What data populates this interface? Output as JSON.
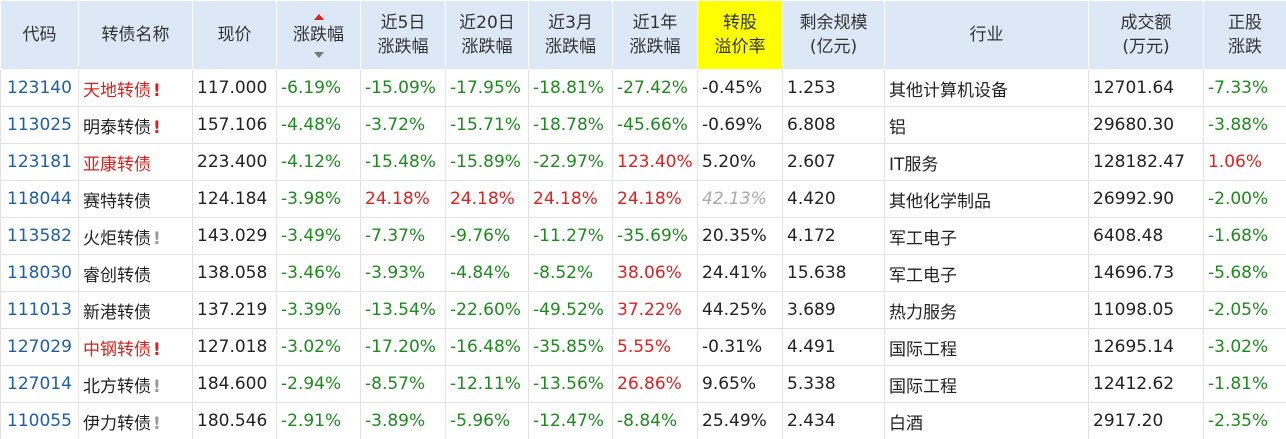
{
  "table": {
    "header": [
      [
        "代码"
      ],
      [
        "转债名称"
      ],
      [
        "现价"
      ],
      [
        "涨跌幅"
      ],
      [
        "近5日",
        "涨跌幅"
      ],
      [
        "近20日",
        "涨跌幅"
      ],
      [
        "近3月",
        "涨跌幅"
      ],
      [
        "近1年",
        "涨跌幅"
      ],
      [
        "转股",
        "溢价率"
      ],
      [
        "剩余规模",
        "(亿元)"
      ],
      [
        "行业"
      ],
      [
        "成交额",
        "(万元)"
      ],
      [
        "正股",
        "涨跌"
      ]
    ],
    "rows": [
      {
        "code": "123140",
        "name": "天地转债",
        "name_color": "#d8201c",
        "flag": "!",
        "flag_color": "#d8201c",
        "price": "117.000",
        "chg": "-6.19%",
        "chg5d": "-15.09%",
        "chg20d": "-17.95%",
        "chg3m": "-18.81%",
        "chg1y": "-27.42%",
        "premium": "-0.45%",
        "scale": "1.253",
        "industry": "其他计算机设备",
        "turnover": "12701.64",
        "stock_chg": "-7.33%"
      },
      {
        "code": "113025",
        "name": "明泰转债",
        "flag": "!",
        "flag_color": "#d8201c",
        "price": "157.106",
        "chg": "-4.48%",
        "chg5d": "-3.72%",
        "chg20d": "-15.71%",
        "chg3m": "-18.78%",
        "chg1y": "-45.66%",
        "premium": "-0.69%",
        "scale": "6.808",
        "industry": "铝",
        "turnover": "29680.30",
        "stock_chg": "-3.88%"
      },
      {
        "code": "123181",
        "name": "亚康转债",
        "name_color": "#d8201c",
        "price": "223.400",
        "chg": "-4.12%",
        "chg5d": "-15.48%",
        "chg20d": "-15.89%",
        "chg3m": "-22.97%",
        "chg1y": "123.40%",
        "premium": "5.20%",
        "scale": "2.607",
        "industry": "IT服务",
        "turnover": "128182.47",
        "stock_chg": "1.06%"
      },
      {
        "code": "118044",
        "name": "赛特转债",
        "price": "124.184",
        "chg": "-3.98%",
        "chg5d": "24.18%",
        "chg20d": "24.18%",
        "chg3m": "24.18%",
        "chg1y": "24.18%",
        "premium": "42.13%",
        "premium_style": "muted",
        "scale": "4.420",
        "industry": "其他化学制品",
        "turnover": "26992.90",
        "stock_chg": "-2.00%"
      },
      {
        "code": "113582",
        "name": "火炬转债",
        "flag": "!",
        "flag_color": "#999999",
        "price": "143.029",
        "chg": "-3.49%",
        "chg5d": "-7.37%",
        "chg20d": "-9.76%",
        "chg3m": "-11.27%",
        "chg1y": "-35.69%",
        "premium": "20.35%",
        "scale": "4.172",
        "industry": "军工电子",
        "turnover": "6408.48",
        "stock_chg": "-1.68%"
      },
      {
        "code": "118030",
        "name": "睿创转债",
        "price": "138.058",
        "chg": "-3.46%",
        "chg5d": "-3.93%",
        "chg20d": "-4.84%",
        "chg3m": "-8.52%",
        "chg1y": "38.06%",
        "premium": "24.41%",
        "scale": "15.638",
        "industry": "军工电子",
        "turnover": "14696.73",
        "stock_chg": "-5.68%"
      },
      {
        "code": "111013",
        "name": "新港转债",
        "price": "137.219",
        "chg": "-3.39%",
        "chg5d": "-13.54%",
        "chg20d": "-22.60%",
        "chg3m": "-49.52%",
        "chg1y": "37.22%",
        "premium": "44.25%",
        "scale": "3.689",
        "industry": "热力服务",
        "turnover": "11098.05",
        "stock_chg": "-2.05%"
      },
      {
        "code": "127029",
        "name": "中钢转债",
        "name_color": "#d8201c",
        "flag": "!",
        "flag_color": "#d8201c",
        "price": "127.018",
        "chg": "-3.02%",
        "chg5d": "-17.20%",
        "chg20d": "-16.48%",
        "chg3m": "-35.85%",
        "chg1y": "5.55%",
        "premium": "-0.31%",
        "scale": "4.491",
        "industry": "国际工程",
        "turnover": "12695.14",
        "stock_chg": "-3.02%"
      },
      {
        "code": "127014",
        "name": "北方转债",
        "flag": "!",
        "flag_color": "#999999",
        "price": "184.600",
        "chg": "-2.94%",
        "chg5d": "-8.57%",
        "chg20d": "-12.11%",
        "chg3m": "-13.56%",
        "chg1y": "26.86%",
        "premium": "9.65%",
        "scale": "5.338",
        "industry": "国际工程",
        "turnover": "12412.62",
        "stock_chg": "-1.81%"
      },
      {
        "code": "110055",
        "name": "伊力转债",
        "flag": "!",
        "flag_color": "#999999",
        "price": "180.546",
        "chg": "-2.91%",
        "chg5d": "-3.89%",
        "chg20d": "-5.96%",
        "chg3m": "-12.47%",
        "chg1y": "-8.84%",
        "premium": "25.49%",
        "scale": "2.434",
        "industry": "白酒",
        "turnover": "2917.20",
        "stock_chg": "-2.35%"
      }
    ]
  }
}
